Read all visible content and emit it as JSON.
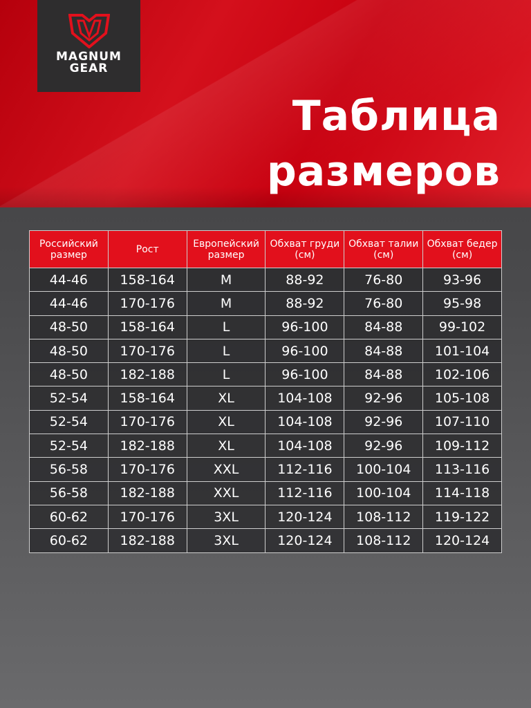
{
  "brand": {
    "logo_line1": "MAGNUM",
    "logo_line2": "GEAR"
  },
  "title": {
    "line1": "Таблица",
    "line2": "размеров"
  },
  "colors": {
    "accent": "#e2101c",
    "panel": "#2e2d2e"
  },
  "table": {
    "headers": [
      "Российский размер",
      "Рост",
      "Европейский размер",
      "Обхват груди (см)",
      "Обхват талии (см)",
      "Обхват бедер (см)"
    ],
    "rows": [
      [
        "44-46",
        "158-164",
        "M",
        "88-92",
        "76-80",
        "93-96"
      ],
      [
        "44-46",
        "170-176",
        "M",
        "88-92",
        "76-80",
        "95-98"
      ],
      [
        "48-50",
        "158-164",
        "L",
        "96-100",
        "84-88",
        "99-102"
      ],
      [
        "48-50",
        "170-176",
        "L",
        "96-100",
        "84-88",
        "101-104"
      ],
      [
        "48-50",
        "182-188",
        "L",
        "96-100",
        "84-88",
        "102-106"
      ],
      [
        "52-54",
        "158-164",
        "XL",
        "104-108",
        "92-96",
        "105-108"
      ],
      [
        "52-54",
        "170-176",
        "XL",
        "104-108",
        "92-96",
        "107-110"
      ],
      [
        "52-54",
        "182-188",
        "XL",
        "104-108",
        "92-96",
        "109-112"
      ],
      [
        "56-58",
        "170-176",
        "XXL",
        "112-116",
        "100-104",
        "113-116"
      ],
      [
        "56-58",
        "182-188",
        "XXL",
        "112-116",
        "100-104",
        "114-118"
      ],
      [
        "60-62",
        "170-176",
        "3XL",
        "120-124",
        "108-112",
        "119-122"
      ],
      [
        "60-62",
        "182-188",
        "3XL",
        "120-124",
        "108-112",
        "120-124"
      ]
    ]
  }
}
